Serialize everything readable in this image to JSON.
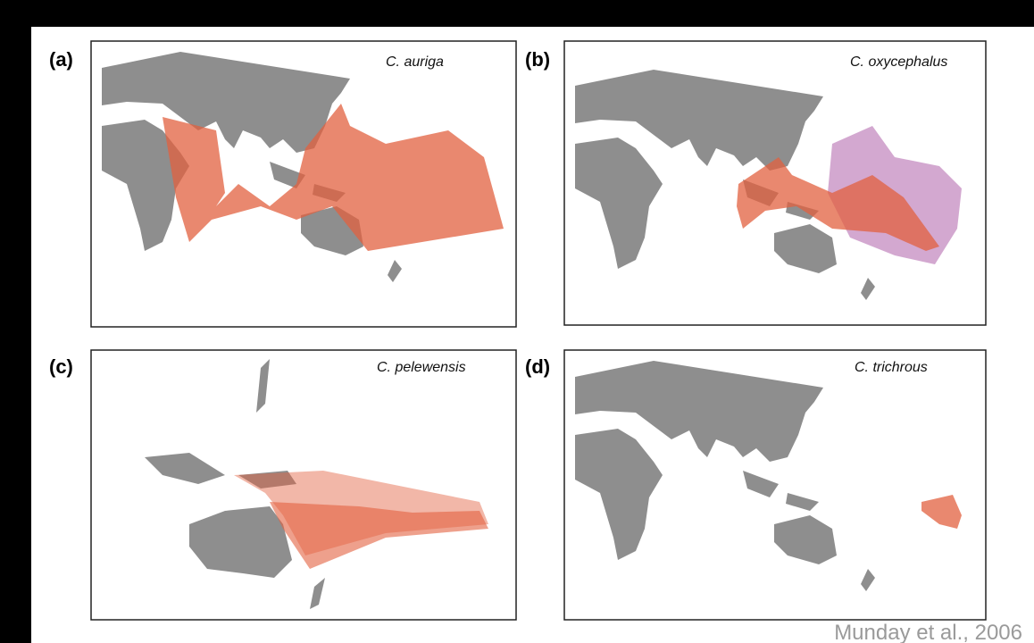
{
  "panels": [
    {
      "label": "(a)",
      "species": "C. auriga"
    },
    {
      "label": "(b)",
      "species": "C. oxycephalus"
    },
    {
      "label": "(c)",
      "species": "C. pelewensis"
    },
    {
      "label": "(d)",
      "species": "C. trichrous"
    }
  ],
  "citation": "Munday et al., 2006"
}
